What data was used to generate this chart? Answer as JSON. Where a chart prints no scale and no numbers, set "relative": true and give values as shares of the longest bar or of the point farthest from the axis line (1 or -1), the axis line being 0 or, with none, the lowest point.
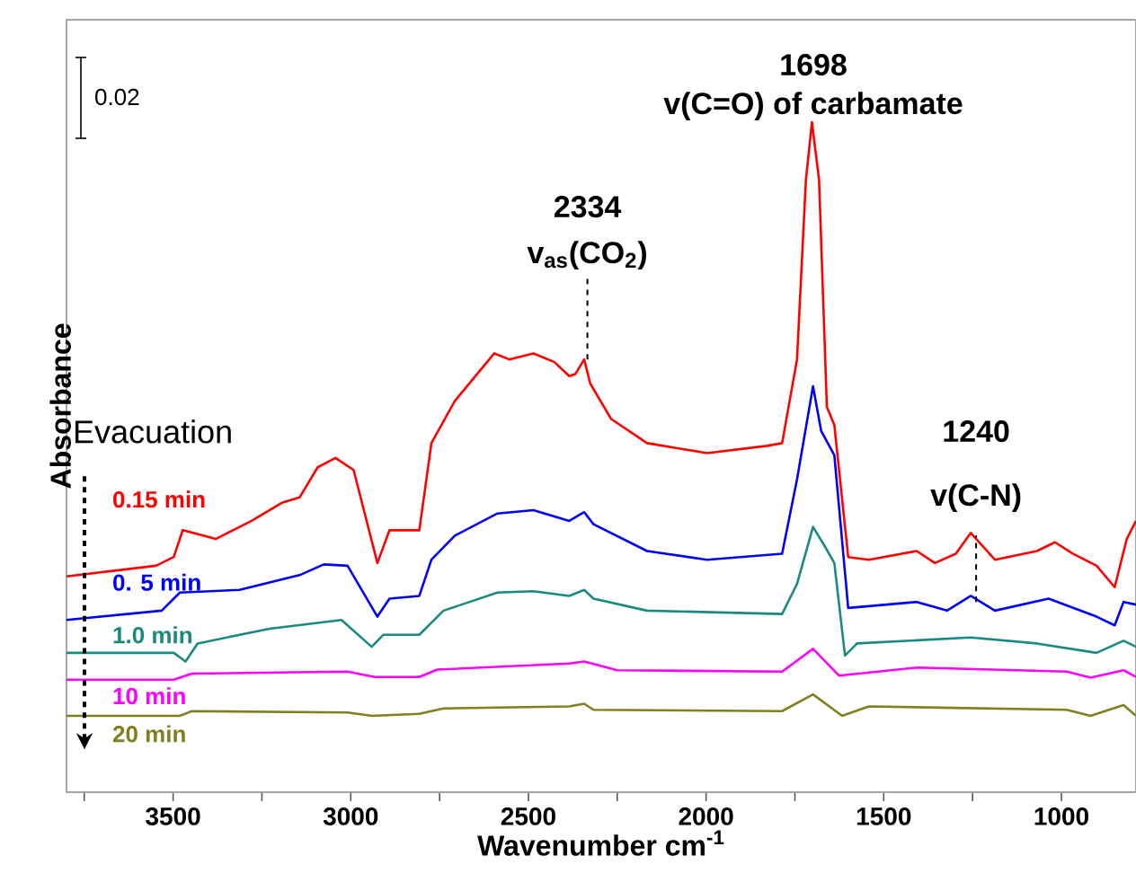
{
  "chart_data": {
    "type": "line",
    "relative": true,
    "xlabel": "Wavenumber cm$^{-1}$",
    "ylabel": "Absorbance",
    "xlim": [
      3800,
      790
    ],
    "xticks": [
      {
        "value": 3750,
        "label": null
      },
      3500,
      {
        "value": 3250,
        "label": null
      },
      3000,
      {
        "value": 2750,
        "label": null
      },
      2500,
      {
        "value": 2250,
        "label": null
      },
      2000,
      {
        "value": 1750,
        "label": null
      },
      1500,
      {
        "value": 1250,
        "label": null
      },
      1000
    ],
    "annotations": [
      "0.02",
      "Evacuation",
      "2334",
      {
        "text": "v$_{as}$(CO$_{2}$)",
        "x": 2334,
        "y": 0.646
      },
      "1698",
      {
        "text": "v(C=O) of carbamate",
        "x": 1698,
        "y": 1.0
      },
      "1240",
      {
        "text": "v(C-N)",
        "x": 1240,
        "y": 0.284
      }
    ],
    "series": [
      {
        "name": "0.15 min",
        "color": "#ff0000",
        "x": [
          3800,
          3548,
          3498,
          3473,
          3380,
          3279,
          3194,
          3144,
          3093,
          3043,
          2992,
          2925,
          2891,
          2807,
          2773,
          2707,
          2596,
          2554,
          2486,
          2427,
          2385,
          2368,
          2343,
          2326,
          2267,
          2166,
          1997,
          1828,
          1786,
          1744,
          1719,
          1702,
          1682,
          1660,
          1639,
          1600,
          1542,
          1407,
          1356,
          1297,
          1255,
          1187,
          1069,
          1018,
          968,
          901,
          850,
          816,
          790
        ],
        "values": [
          0.322,
          0.338,
          0.351,
          0.391,
          0.378,
          0.405,
          0.432,
          0.44,
          0.485,
          0.499,
          0.481,
          0.342,
          0.391,
          0.391,
          0.521,
          0.584,
          0.655,
          0.646,
          0.655,
          0.642,
          0.621,
          0.624,
          0.646,
          0.61,
          0.557,
          0.521,
          0.506,
          0.517,
          0.521,
          0.646,
          0.914,
          1.0,
          0.914,
          0.575,
          0.548,
          0.351,
          0.347,
          0.36,
          0.342,
          0.356,
          0.387,
          0.347,
          0.36,
          0.373,
          0.356,
          0.338,
          0.306,
          0.378,
          0.405
        ]
      },
      {
        "name": "0. 5 min",
        "color": "#0000ff",
        "x": [
          3800,
          3532,
          3481,
          3313,
          3144,
          3076,
          3009,
          2925,
          2891,
          2807,
          2773,
          2707,
          2587,
          2486,
          2385,
          2343,
          2317,
          2166,
          1997,
          1786,
          1744,
          1699,
          1676,
          1639,
          1600,
          1407,
          1322,
          1255,
          1187,
          1036,
          901,
          850,
          825,
          790
        ],
        "values": [
          0.257,
          0.271,
          0.298,
          0.302,
          0.324,
          0.34,
          0.338,
          0.262,
          0.289,
          0.293,
          0.347,
          0.383,
          0.416,
          0.421,
          0.405,
          0.418,
          0.4,
          0.36,
          0.347,
          0.356,
          0.467,
          0.606,
          0.539,
          0.503,
          0.275,
          0.284,
          0.271,
          0.293,
          0.271,
          0.289,
          0.262,
          0.249,
          0.284,
          0.28
        ]
      },
      {
        "name": "1.0 min",
        "color": "#1a8a80",
        "x": [
          3800,
          3498,
          3465,
          3431,
          3228,
          3026,
          2941,
          2908,
          2807,
          2739,
          2587,
          2486,
          2385,
          2343,
          2317,
          2166,
          1786,
          1744,
          1699,
          1668,
          1639,
          1609,
          1575,
          1255,
          1069,
          901,
          825,
          790
        ],
        "values": [
          0.208,
          0.208,
          0.195,
          0.222,
          0.244,
          0.257,
          0.217,
          0.235,
          0.235,
          0.271,
          0.298,
          0.3,
          0.293,
          0.302,
          0.289,
          0.271,
          0.266,
          0.311,
          0.396,
          0.369,
          0.342,
          0.204,
          0.222,
          0.231,
          0.222,
          0.208,
          0.226,
          0.217
        ]
      },
      {
        "name": "10 min",
        "color": "#ff00ff",
        "x": [
          3800,
          3498,
          3447,
          3009,
          2933,
          2807,
          2756,
          2385,
          2343,
          2250,
          1786,
          1699,
          1626,
          1407,
          985,
          918,
          825,
          790
        ],
        "values": [
          0.168,
          0.168,
          0.177,
          0.18,
          0.172,
          0.172,
          0.183,
          0.192,
          0.195,
          0.182,
          0.18,
          0.214,
          0.174,
          0.186,
          0.18,
          0.171,
          0.182,
          0.172
        ]
      },
      {
        "name": "20 min",
        "color": "#808020",
        "x": [
          3800,
          3481,
          3447,
          3009,
          2941,
          2807,
          2739,
          2385,
          2343,
          2317,
          1786,
          1699,
          1617,
          1542,
          985,
          918,
          825,
          790
        ],
        "values": [
          0.114,
          0.114,
          0.121,
          0.119,
          0.114,
          0.117,
          0.125,
          0.128,
          0.132,
          0.123,
          0.121,
          0.146,
          0.114,
          0.128,
          0.123,
          0.114,
          0.13,
          0.114
        ]
      }
    ]
  }
}
